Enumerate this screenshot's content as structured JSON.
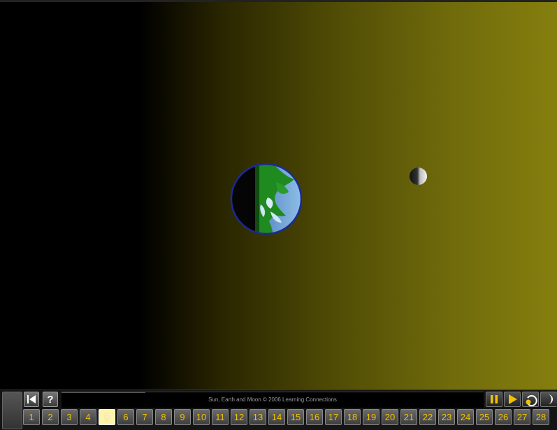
{
  "title": "Sun, Earth and Moon  © 2006 Learning Connections",
  "controls": {
    "rewind_icon": "skip-back-icon",
    "help_label": "?",
    "pause_icon": "pause-icon",
    "play_icon": "play-icon",
    "reset_icon": "reset-icon",
    "next_icon": "moon-phase-icon"
  },
  "scenes": [
    "1",
    "2",
    "3",
    "4",
    "5",
    "6",
    "7",
    "8",
    "9",
    "10",
    "11",
    "12",
    "13",
    "14",
    "15",
    "16",
    "17",
    "18",
    "19",
    "20",
    "21",
    "22",
    "23",
    "24",
    "25",
    "26",
    "27",
    "28"
  ],
  "active_scene": "5",
  "colors": {
    "scene_label": "#f2c200",
    "sunlight": "#857f0e",
    "earth_ocean": "#4a8fd0",
    "earth_land": "#1f8a1f",
    "earth_rim": "#1a2a9a"
  }
}
